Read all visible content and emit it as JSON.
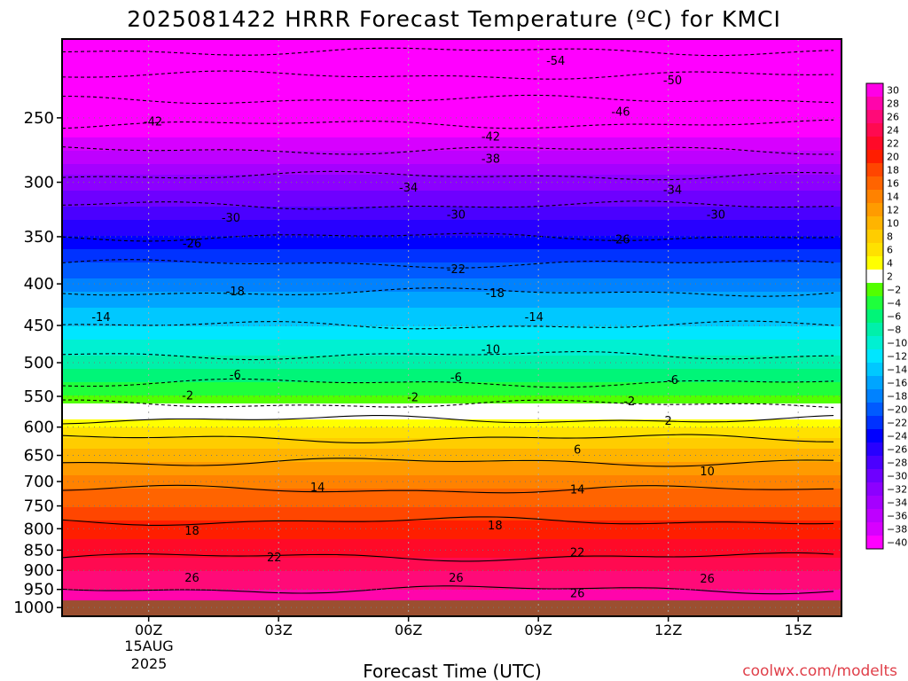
{
  "chart_data": {
    "type": "heatmap",
    "title": "2025081422 HRRR Forecast Temperature (ºC) for KMCI",
    "xlabel": "Forecast Time (UTC)",
    "ylabel": "",
    "credit": "coolwx.com/modelts",
    "x_ticks": [
      {
        "label": "00Z",
        "hour": 0
      },
      {
        "label": "03Z",
        "hour": 3
      },
      {
        "label": "06Z",
        "hour": 6
      },
      {
        "label": "09Z",
        "hour": 9
      },
      {
        "label": "12Z",
        "hour": 12
      },
      {
        "label": "15Z",
        "hour": 15
      }
    ],
    "x_date_lines": [
      "15AUG",
      "2025"
    ],
    "xlim_hours": [
      -2,
      16
    ],
    "y_ticks": [
      250,
      300,
      350,
      400,
      450,
      500,
      550,
      600,
      650,
      700,
      750,
      800,
      850,
      900,
      950,
      1000
    ],
    "y_scale": "log",
    "y_range_hPa": [
      200,
      1025
    ],
    "surface_pressure_hPa": 980,
    "surface_color": "#9b4f30",
    "colorbar_levels": [
      30,
      28,
      26,
      24,
      22,
      20,
      18,
      16,
      14,
      12,
      10,
      8,
      6,
      4,
      2,
      -2,
      -4,
      -6,
      -8,
      -10,
      -12,
      -14,
      -16,
      -18,
      -20,
      -22,
      -24,
      -26,
      -28,
      -30,
      -32,
      -34,
      -36,
      -38,
      -40
    ],
    "colorbar_colors": [
      "#ff00e6",
      "#ff05ab",
      "#ff0a78",
      "#ff0a50",
      "#ff0a28",
      "#ff1e00",
      "#ff4600",
      "#ff6400",
      "#ff8200",
      "#ff9b00",
      "#ffb400",
      "#ffcd00",
      "#ffe100",
      "#ffff00",
      "#ffffff",
      "#52ff00",
      "#1eff3c",
      "#00f578",
      "#00f0aa",
      "#00f0d2",
      "#00e6ff",
      "#00c8ff",
      "#00a5ff",
      "#0082ff",
      "#005aff",
      "#0032ff",
      "#0000ff",
      "#2800ff",
      "#4b00ff",
      "#6e00ff",
      "#8c00ff",
      "#a500ff",
      "#be00ff",
      "#d700ff",
      "#ff00ff"
    ],
    "profile": [
      {
        "p": 1000,
        "t": 27
      },
      {
        "p": 950,
        "t": 26
      },
      {
        "p": 900,
        "t": 24
      },
      {
        "p": 850,
        "t": 21
      },
      {
        "p": 800,
        "t": 19
      },
      {
        "p": 750,
        "t": 16
      },
      {
        "p": 700,
        "t": 13
      },
      {
        "p": 650,
        "t": 9
      },
      {
        "p": 600,
        "t": 4
      },
      {
        "p": 575,
        "t": 0
      },
      {
        "p": 550,
        "t": -4
      },
      {
        "p": 500,
        "t": -9
      },
      {
        "p": 450,
        "t": -14
      },
      {
        "p": 400,
        "t": -19
      },
      {
        "p": 350,
        "t": -26
      },
      {
        "p": 300,
        "t": -33
      },
      {
        "p": 250,
        "t": -43
      },
      {
        "p": 200,
        "t": -56
      }
    ],
    "contour_labels": [
      {
        "text": "-54",
        "hour": 9.4,
        "p": 213
      },
      {
        "text": "-50",
        "hour": 12.1,
        "p": 225
      },
      {
        "text": "-46",
        "hour": 10.9,
        "p": 246
      },
      {
        "text": "-42",
        "hour": 0.1,
        "p": 253
      },
      {
        "text": "-42",
        "hour": 7.9,
        "p": 264
      },
      {
        "text": "-38",
        "hour": 7.9,
        "p": 281
      },
      {
        "text": "-34",
        "hour": 6.0,
        "p": 305
      },
      {
        "text": "-34",
        "hour": 12.1,
        "p": 307
      },
      {
        "text": "-30",
        "hour": 1.9,
        "p": 332
      },
      {
        "text": "-30",
        "hour": 7.1,
        "p": 329
      },
      {
        "text": "-30",
        "hour": 13.1,
        "p": 329
      },
      {
        "text": "-26",
        "hour": 1.0,
        "p": 357
      },
      {
        "text": "-26",
        "hour": 10.9,
        "p": 353
      },
      {
        "text": "-22",
        "hour": 7.1,
        "p": 384
      },
      {
        "text": "-18",
        "hour": 2.0,
        "p": 409
      },
      {
        "text": "-18",
        "hour": 8.0,
        "p": 411
      },
      {
        "text": "-14",
        "hour": -1.1,
        "p": 440
      },
      {
        "text": "-14",
        "hour": 8.9,
        "p": 440
      },
      {
        "text": "-10",
        "hour": 7.9,
        "p": 482
      },
      {
        "text": "-6",
        "hour": 2.0,
        "p": 518
      },
      {
        "text": "-6",
        "hour": 7.1,
        "p": 522
      },
      {
        "text": "-6",
        "hour": 12.1,
        "p": 526
      },
      {
        "text": "-2",
        "hour": 0.9,
        "p": 549
      },
      {
        "text": "-2",
        "hour": 6.1,
        "p": 552
      },
      {
        "text": "-2",
        "hour": 11.1,
        "p": 558
      },
      {
        "text": "2",
        "hour": 12.0,
        "p": 590
      },
      {
        "text": "6",
        "hour": 9.9,
        "p": 640
      },
      {
        "text": "10",
        "hour": 12.9,
        "p": 681
      },
      {
        "text": "14",
        "hour": 3.9,
        "p": 712
      },
      {
        "text": "14",
        "hour": 9.9,
        "p": 717
      },
      {
        "text": "18",
        "hour": 1.0,
        "p": 806
      },
      {
        "text": "18",
        "hour": 8.0,
        "p": 793
      },
      {
        "text": "22",
        "hour": 2.9,
        "p": 868
      },
      {
        "text": "22",
        "hour": 9.9,
        "p": 857
      },
      {
        "text": "26",
        "hour": 1.0,
        "p": 920
      },
      {
        "text": "26",
        "hour": 7.1,
        "p": 920
      },
      {
        "text": "26",
        "hour": 12.9,
        "p": 922
      },
      {
        "text": "26",
        "hour": 9.9,
        "p": 962
      }
    ]
  }
}
